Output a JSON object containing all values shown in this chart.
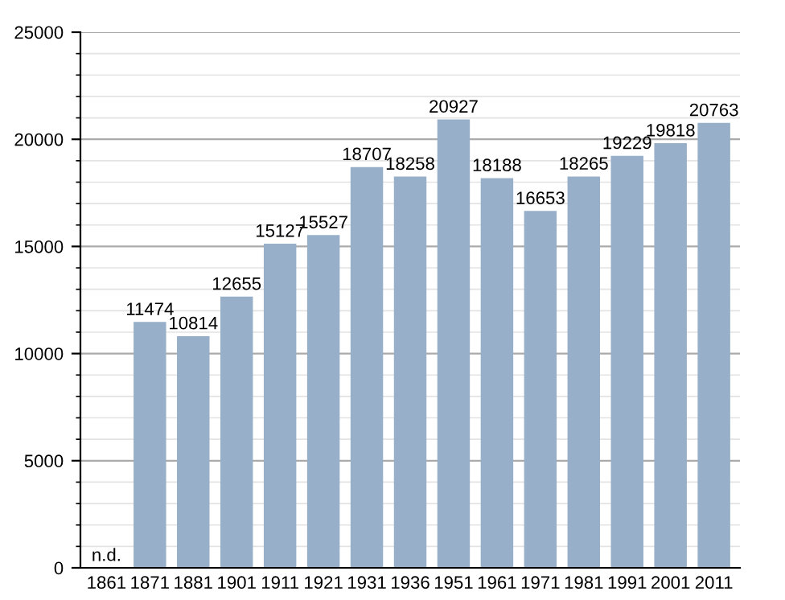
{
  "chart_data": {
    "type": "bar",
    "categories": [
      "1861",
      "1871",
      "1881",
      "1901",
      "1911",
      "1921",
      "1931",
      "1936",
      "1951",
      "1961",
      "1971",
      "1981",
      "1991",
      "2001",
      "2011"
    ],
    "values": [
      null,
      11474,
      10814,
      12655,
      15127,
      15527,
      18707,
      18258,
      20927,
      18188,
      16653,
      18265,
      19229,
      19818,
      20763
    ],
    "value_labels": [
      "n.d.",
      "11474",
      "10814",
      "12655",
      "15127",
      "15527",
      "18707",
      "18258",
      "20927",
      "18188",
      "16653",
      "18265",
      "19229",
      "19818",
      "20763"
    ],
    "color": "#97afc8",
    "ylim": [
      0,
      25000
    ],
    "yticks": [
      0,
      5000,
      10000,
      15000,
      20000,
      25000
    ],
    "grid": "y",
    "legend": false
  }
}
